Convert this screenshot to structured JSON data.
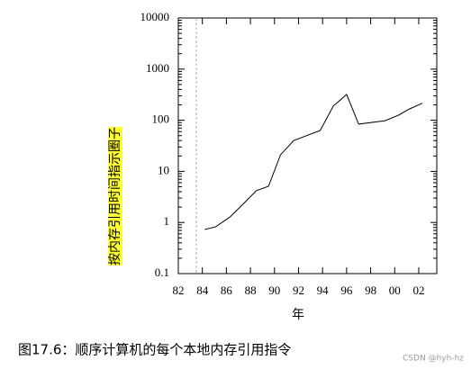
{
  "chart_data": {
    "type": "line",
    "log_y": true,
    "xlabel": "年",
    "ylabel": "按内存引用时间指示圈子",
    "caption": "图17.6：顺序计算机的每个本地内存引用指令",
    "watermark": "CSDN @hyh-hz",
    "x": [
      1984.2,
      1985.1,
      1986.3,
      1987.4,
      1988.5,
      1989.5,
      1990.5,
      1991.6,
      1993.8,
      1994.9,
      1996,
      1997,
      1999.2,
      2000.3,
      2001.2,
      2002.3
    ],
    "series": [
      {
        "color": "#000000",
        "values": [
          0.73,
          0.82,
          1.28,
          2.3,
          4.2,
          5.1,
          21,
          40,
          63,
          190,
          320,
          84,
          98,
          125,
          165,
          215
        ]
      }
    ],
    "xlim": [
      1982,
      2003.5
    ],
    "xticks": [
      {
        "value": 1982,
        "label": "82"
      },
      {
        "value": 1984,
        "label": "84"
      },
      {
        "value": 1986,
        "label": "86"
      },
      {
        "value": 1988,
        "label": "88"
      },
      {
        "value": 1990,
        "label": "90"
      },
      {
        "value": 1992,
        "label": "92"
      },
      {
        "value": 1994,
        "label": "94"
      },
      {
        "value": 1996,
        "label": "96"
      },
      {
        "value": 1998,
        "label": "98"
      },
      {
        "value": 2000,
        "label": "00"
      },
      {
        "value": 2002,
        "label": "02"
      }
    ],
    "ylim": [
      0.1,
      10000
    ],
    "yticks": [
      0.1,
      1,
      10,
      100,
      1000,
      10000
    ]
  }
}
